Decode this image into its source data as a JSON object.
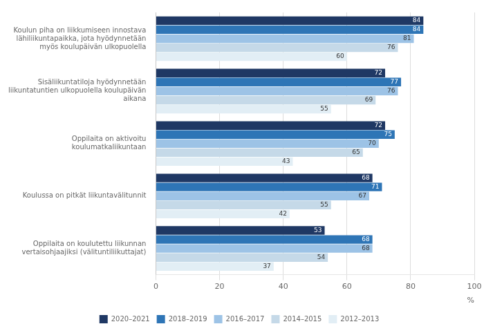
{
  "chart_data": {
    "type": "bar",
    "orientation": "horizontal",
    "categories": [
      "Koulun piha on liikkumiseen innostava\nlähiliikuntapaikka, jota hyödynnetään\nmyös koulupäivän ulkopuolella",
      "Sisäliikuntatiloja hyödynnetään\nliikuntatuntien ulkopuolella koulupäivän\naikana",
      "Oppilaita on aktivoitu\nkoulumatkaliikuntaan",
      "Koulussa on pitkät liikuntavälitunnit",
      "Oppilaita on koulutettu liikunnan\nvertaisohjaajiksi (välituntiliikuttajat)"
    ],
    "series": [
      {
        "name": "2020–2021",
        "color": "#1F3864",
        "values": [
          84,
          72,
          72,
          68,
          53
        ]
      },
      {
        "name": "2018–2019",
        "color": "#2E75B6",
        "values": [
          84,
          77,
          75,
          71,
          68
        ]
      },
      {
        "name": "2016–2017",
        "color": "#9DC3E6",
        "values": [
          81,
          76,
          70,
          67,
          68
        ]
      },
      {
        "name": "2014–2015",
        "color": "#C5D9E8",
        "values": [
          76,
          69,
          65,
          55,
          54
        ]
      },
      {
        "name": "2012–2013",
        "color": "#E2EEF5",
        "values": [
          60,
          55,
          43,
          42,
          37
        ]
      }
    ],
    "xlabel": "%",
    "xlim": [
      0,
      100
    ],
    "xticks": [
      0,
      20,
      40,
      60,
      80,
      100
    ],
    "grid": true,
    "legend": "bottom",
    "data_labels": true
  }
}
